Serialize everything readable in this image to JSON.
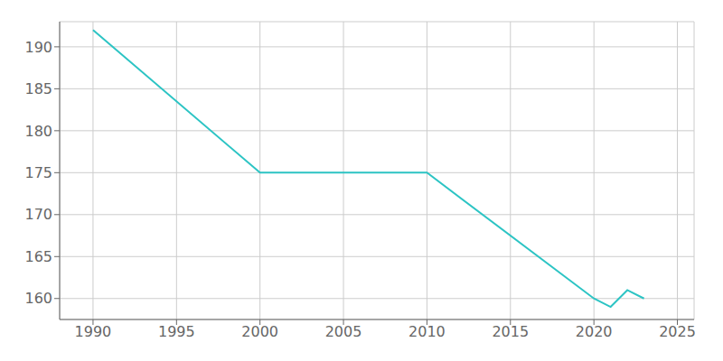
{
  "chart_data": {
    "type": "line",
    "x": [
      1990,
      2000,
      2010,
      2020,
      2021,
      2022,
      2023
    ],
    "values": [
      192,
      175,
      175,
      160,
      159,
      161,
      160
    ],
    "color": "#2CC4C4",
    "xlim": [
      1988,
      2026
    ],
    "ylim": [
      157.5,
      193
    ],
    "xticks": [
      1990,
      1995,
      2000,
      2005,
      2010,
      2015,
      2020,
      2025
    ],
    "yticks": [
      160,
      165,
      170,
      175,
      180,
      185,
      190
    ],
    "grid": true
  }
}
